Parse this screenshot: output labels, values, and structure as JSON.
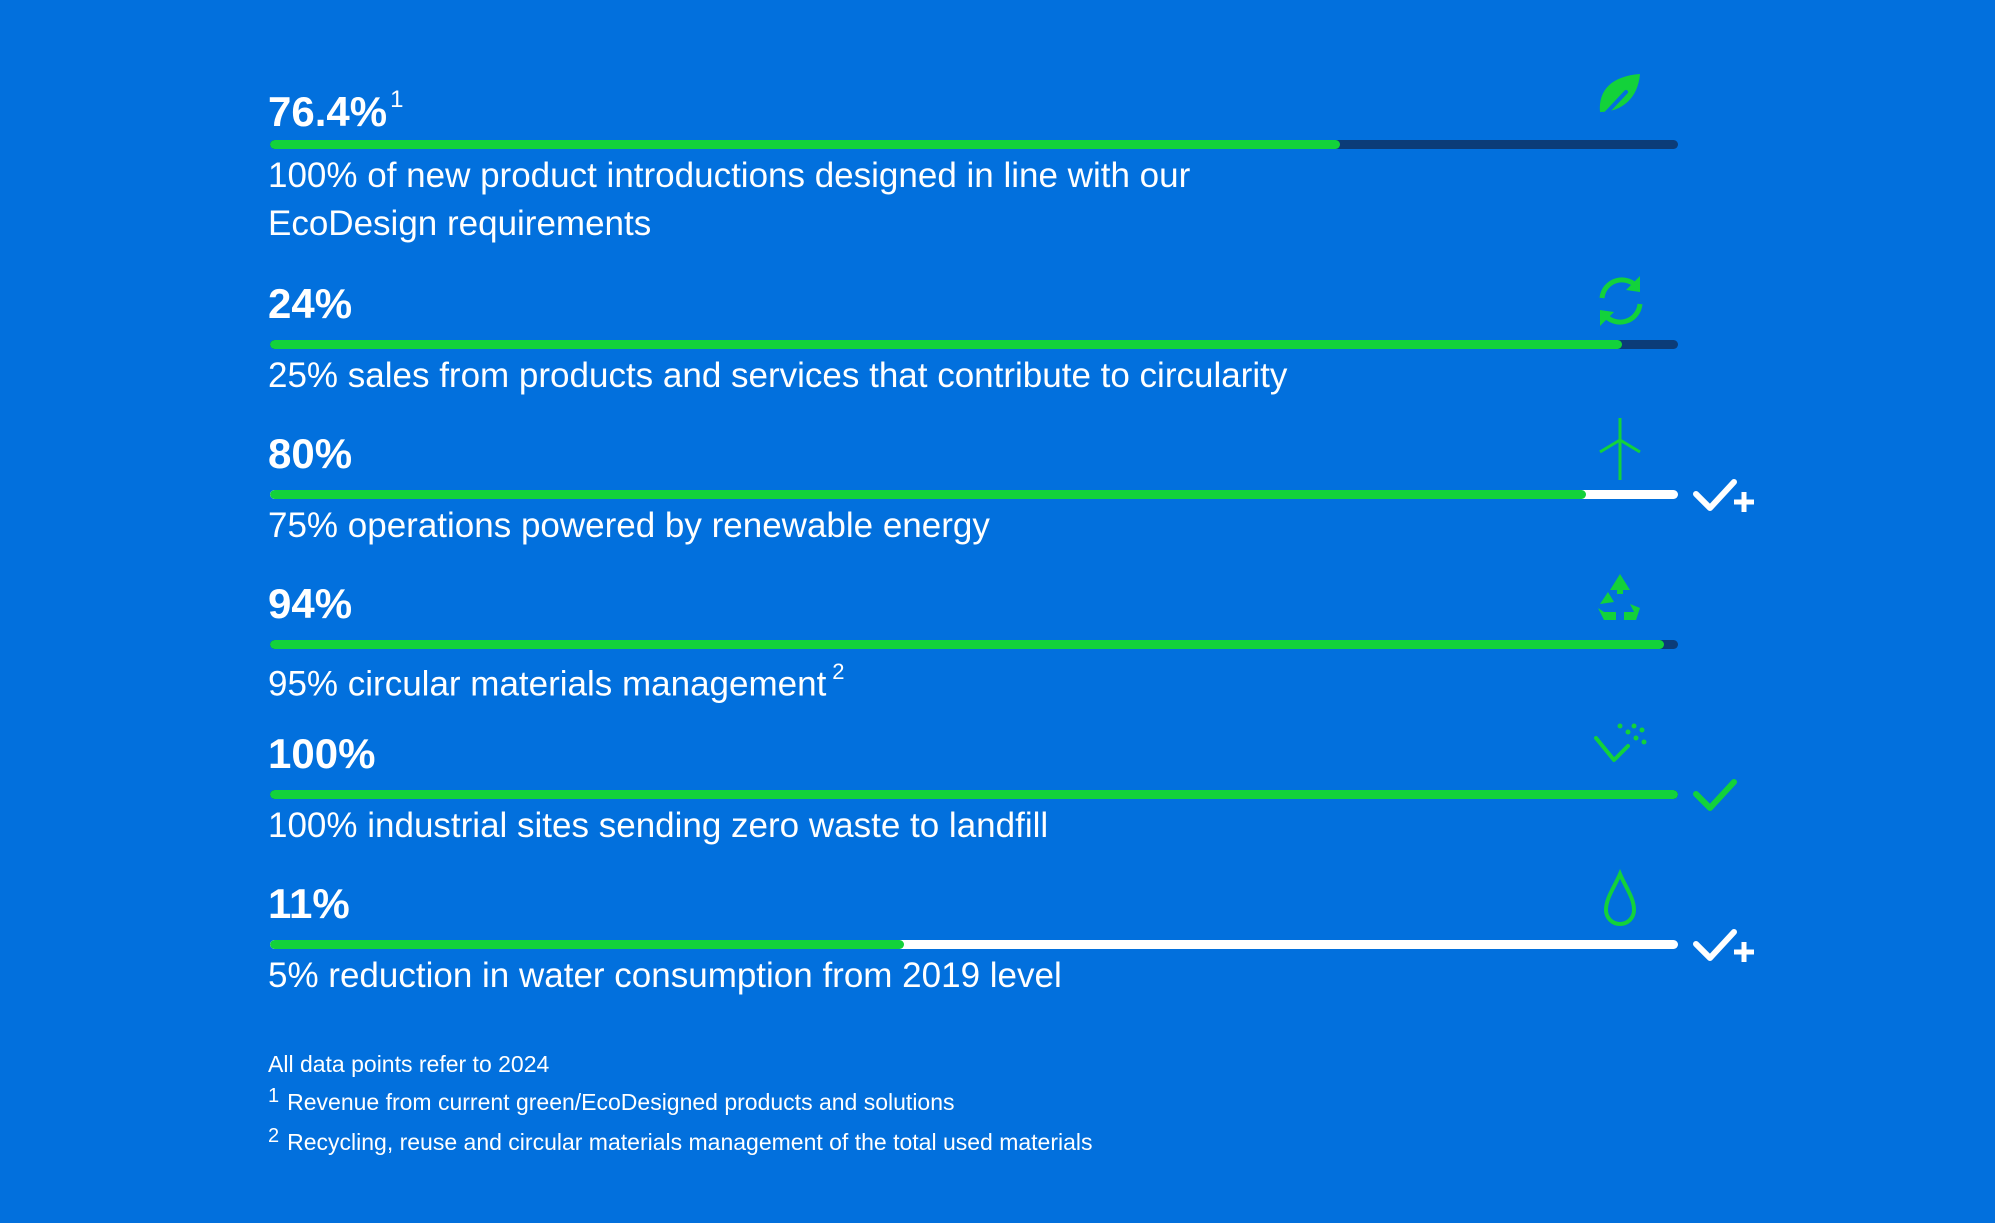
{
  "chart_data": {
    "type": "bar",
    "orientation": "horizontal",
    "colors": {
      "background": "#0270DD",
      "progress": "#13D23A",
      "track_below_target": "#0B3C78",
      "track_target_exceeded": "#FFFFFF",
      "text": "#FFFFFF"
    },
    "items": [
      {
        "value_label": "76.4%",
        "value_footnote": "1",
        "progress": 0.76,
        "track": "dark",
        "description": "100% of new product introductions designed in line with our EcoDesign requirements",
        "description_footnote": "",
        "icon": "leaf-icon",
        "status_icon": ""
      },
      {
        "value_label": "24%",
        "value_footnote": "",
        "progress": 0.96,
        "track": "dark",
        "description": "25% sales from products and services that contribute to circularity",
        "description_footnote": "",
        "icon": "circular-arrows-icon",
        "status_icon": ""
      },
      {
        "value_label": "80%",
        "value_footnote": "",
        "progress": 0.935,
        "track": "light",
        "description": "75% operations powered by renewable energy",
        "description_footnote": "",
        "icon": "wind-turbine-icon",
        "status_icon": "check-plus-icon"
      },
      {
        "value_label": "94%",
        "value_footnote": "",
        "progress": 0.99,
        "track": "dark",
        "description": "95% circular materials management",
        "description_footnote": "2",
        "icon": "recycle-icon",
        "status_icon": ""
      },
      {
        "value_label": "100%",
        "value_footnote": "",
        "progress": 1.0,
        "track": "dark",
        "description": "100% industrial sites sending zero waste to landfill",
        "description_footnote": "",
        "icon": "zero-waste-icon",
        "status_icon": "check-icon"
      },
      {
        "value_label": "11%",
        "value_footnote": "",
        "progress": 0.45,
        "track": "light",
        "description": "5% reduction in water consumption from 2019 level",
        "description_footnote": "",
        "icon": "water-drop-icon",
        "status_icon": "check-plus-icon"
      }
    ]
  },
  "notes": {
    "general": "All data points refer to 2024",
    "footnotes": [
      {
        "number": "1",
        "text": "Revenue from current green/EcoDesigned products and solutions"
      },
      {
        "number": "2",
        "text": "Recycling, reuse and circular materials management of the total used materials"
      }
    ]
  }
}
